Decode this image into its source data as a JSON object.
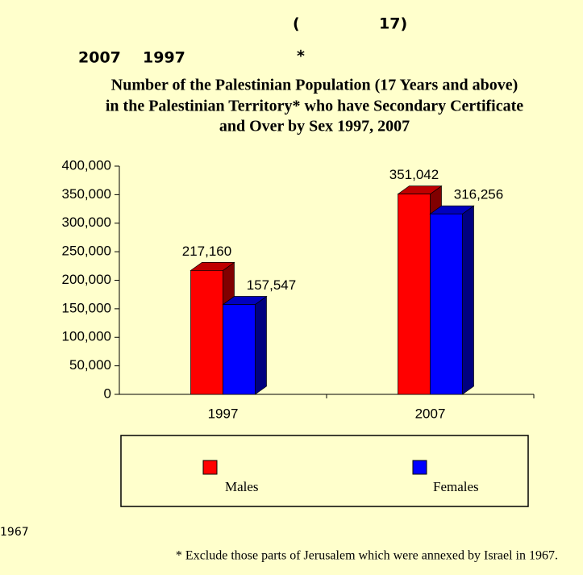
{
  "header": {
    "line1": [
      "(",
      "17)"
    ],
    "line2": [
      "2007",
      "1997",
      "*"
    ]
  },
  "chart_data": {
    "type": "bar",
    "title": [
      "Number of the Palestinian Population (17 Years and above)",
      "in the Palestinian Territory* who have Secondary Certificate",
      "and Over by Sex 1997, 2007"
    ],
    "categories": [
      "1997",
      "2007"
    ],
    "series": [
      {
        "name": "Males",
        "color": "#ff0000",
        "values": [
          217160,
          351042
        ],
        "value_labels": [
          "217,160",
          "351,042"
        ]
      },
      {
        "name": "Females",
        "color": "#0000ff",
        "values": [
          157547,
          316256
        ],
        "value_labels": [
          "157,547",
          "316,256"
        ]
      }
    ],
    "ylim": [
      0,
      400000
    ],
    "yticks": [
      0,
      {
        "value": 50000,
        "label": "50,000"
      },
      {
        "value": 100000,
        "label": "100,000"
      },
      {
        "value": 150000,
        "label": "150,000"
      },
      {
        "value": 200000,
        "label": "200,000"
      },
      {
        "value": 250000,
        "label": "250,000"
      },
      {
        "value": 300000,
        "label": "300,000"
      },
      {
        "value": 350000,
        "label": "350,000"
      },
      {
        "value": 400000,
        "label": "400,000"
      }
    ],
    "legend": "bottom"
  },
  "note": "1967",
  "footnote": "* Exclude those parts of Jerusalem which were annexed by Israel in 1967."
}
